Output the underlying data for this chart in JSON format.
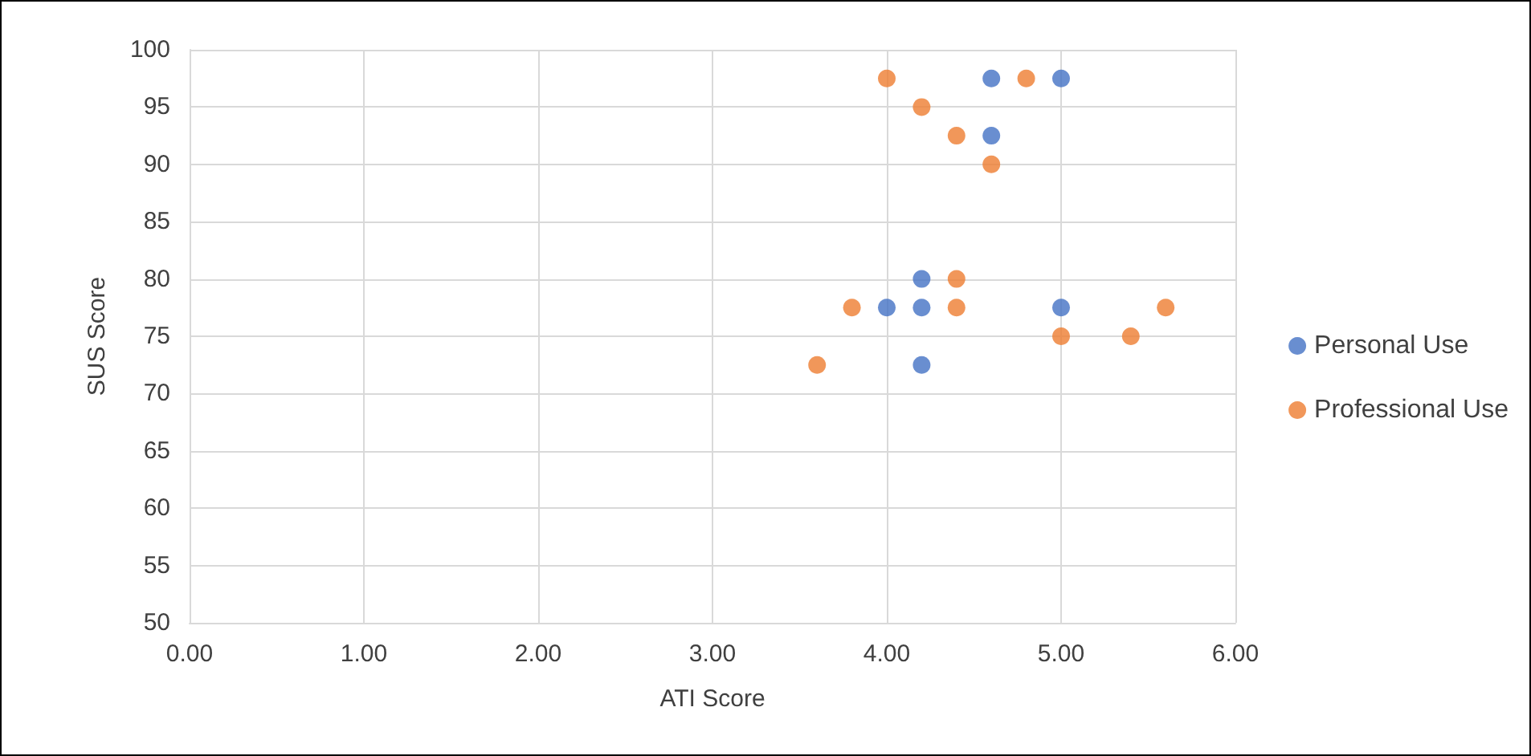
{
  "chart_data": {
    "type": "scatter",
    "xlabel": "ATI Score",
    "ylabel": "SUS Score",
    "xlim": [
      0,
      6
    ],
    "xticks": [
      {
        "value": 0,
        "label": "0.00"
      },
      {
        "value": 1,
        "label": "1.00"
      },
      {
        "value": 2,
        "label": "2.00"
      },
      {
        "value": 3,
        "label": "3.00"
      },
      {
        "value": 4,
        "label": "4.00"
      },
      {
        "value": 5,
        "label": "5.00"
      },
      {
        "value": 6,
        "label": "6.00"
      }
    ],
    "ylim": [
      50,
      100
    ],
    "yticks": [
      50,
      55,
      60,
      65,
      70,
      75,
      80,
      85,
      90,
      95,
      100
    ],
    "grid": true,
    "legend": "right",
    "marker": "circle",
    "series": [
      {
        "name": "Personal Use",
        "color": "#4472c4",
        "x": [
          4.6,
          5.0,
          4.6,
          4.2,
          4.0,
          4.2,
          5.0,
          4.2
        ],
        "values": [
          97.5,
          97.5,
          92.5,
          80,
          77.5,
          77.5,
          77.5,
          72.5
        ]
      },
      {
        "name": "Professional Use",
        "color": "#ed7d31",
        "x": [
          4.0,
          4.8,
          4.2,
          4.4,
          4.6,
          4.4,
          3.8,
          4.4,
          5.6,
          5.0,
          5.4,
          3.6
        ],
        "values": [
          97.5,
          97.5,
          95,
          92.5,
          90,
          80,
          77.5,
          77.5,
          77.5,
          75,
          75,
          72.5
        ]
      }
    ]
  }
}
